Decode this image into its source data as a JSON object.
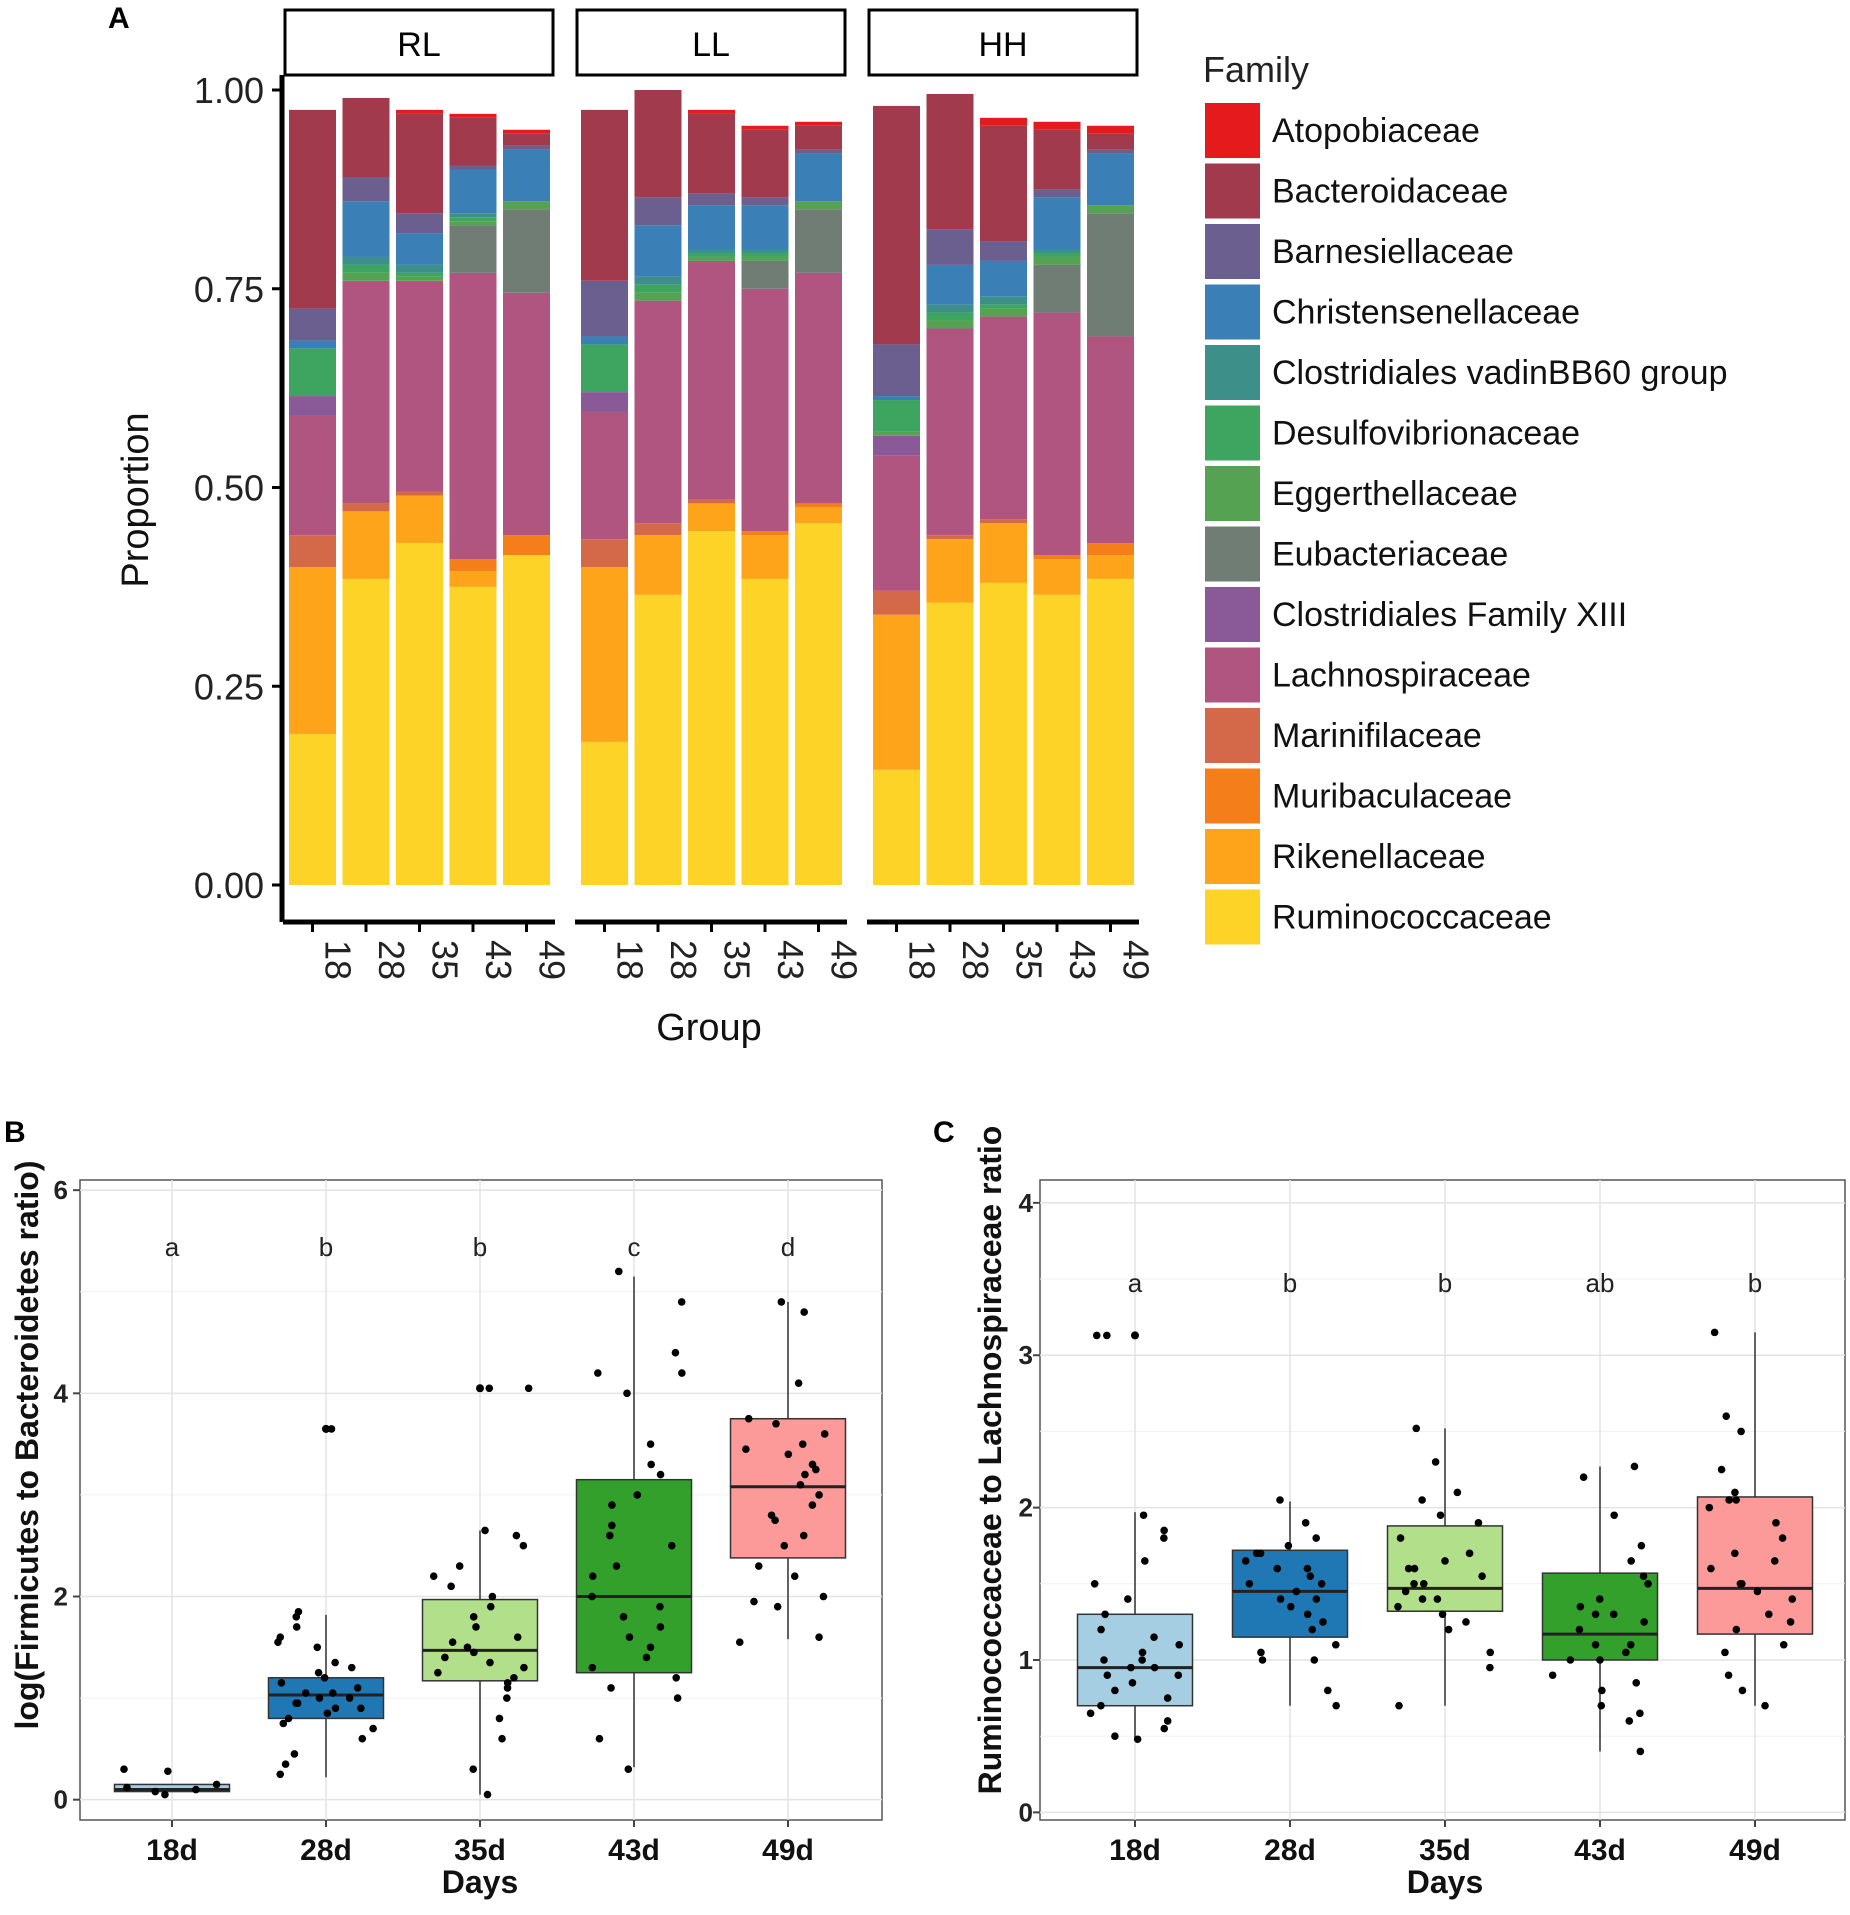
{
  "panel_labels": {
    "a": "A",
    "b": "B",
    "c": "C"
  },
  "chart_data": [
    {
      "type": "bar",
      "stacked": true,
      "title": "",
      "xlabel": "Group",
      "ylabel": "Proportion",
      "ylim": [
        0,
        1
      ],
      "yticks": [
        "0.00",
        "0.25",
        "0.50",
        "0.75",
        "1.00"
      ],
      "facets": [
        "RL",
        "LL",
        "HH"
      ],
      "categories": [
        "18",
        "28",
        "35",
        "43",
        "49"
      ],
      "legend_title": "Family",
      "legend_position": "right",
      "families": [
        "Atopobiaceae",
        "Bacteroidaceae",
        "Barnesiellaceae",
        "Christensenellaceae",
        "Clostridiales vadinBB60 group",
        "Desulfovibrionaceae",
        "Eggerthellaceae",
        "Eubacteriaceae",
        "Clostridiales Family XIII",
        "Lachnospiraceae",
        "Marinifilaceae",
        "Muribaculaceae",
        "Rikenellaceae",
        "Ruminococcaceae"
      ],
      "colors": [
        "#E41A1C",
        "#A13A4C",
        "#6A5F8E",
        "#3A7FB5",
        "#3D9089",
        "#3DA55F",
        "#55A352",
        "#6F7D74",
        "#8A5A98",
        "#B05480",
        "#D4694A",
        "#F47E1A",
        "#FDA41B",
        "#FDD327"
      ],
      "values": {
        "RL": {
          "18": [
            0,
            0.25,
            0.04,
            0.01,
            0,
            0.06,
            0,
            0,
            0.025,
            0.15,
            0.04,
            0,
            0.21,
            0.19
          ],
          "28": [
            0,
            0.1,
            0.03,
            0.07,
            0.01,
            0.01,
            0.01,
            0,
            0,
            0.28,
            0.01,
            0,
            0.085,
            0.385
          ],
          "35": [
            0.005,
            0.125,
            0.025,
            0.04,
            0.01,
            0.005,
            0.005,
            0,
            0,
            0.265,
            0.005,
            0,
            0.06,
            0.43
          ],
          "43": [
            0.005,
            0.06,
            0.005,
            0.055,
            0.005,
            0.005,
            0.005,
            0.06,
            0,
            0.36,
            0,
            0.015,
            0.02,
            0.375
          ],
          "49": [
            0.005,
            0.015,
            0.005,
            0.065,
            0,
            0,
            0.01,
            0.105,
            0,
            0.305,
            0,
            0.025,
            0,
            0.415
          ]
        },
        "LL": {
          "18": [
            0,
            0.215,
            0.07,
            0.01,
            0,
            0.06,
            0,
            0,
            0.025,
            0.16,
            0.035,
            0,
            0.22,
            0.18
          ],
          "28": [
            0,
            0.135,
            0.035,
            0.065,
            0.01,
            0.01,
            0.01,
            0,
            0,
            0.28,
            0.015,
            0,
            0.075,
            0.365
          ],
          "35": [
            0.005,
            0.1,
            0.015,
            0.055,
            0.005,
            0.005,
            0.005,
            0,
            0,
            0.3,
            0.005,
            0,
            0.035,
            0.445
          ],
          "43": [
            0.005,
            0.085,
            0.01,
            0.055,
            0.005,
            0.005,
            0.005,
            0.035,
            0,
            0.305,
            0,
            0.005,
            0.055,
            0.385
          ],
          "49": [
            0.005,
            0.03,
            0.005,
            0.06,
            0,
            0,
            0.01,
            0.08,
            0,
            0.29,
            0,
            0.005,
            0.02,
            0.455
          ]
        },
        "HH": {
          "18": [
            0,
            0.3,
            0.065,
            0.005,
            0,
            0.04,
            0.005,
            0,
            0.025,
            0.17,
            0.03,
            0,
            0.195,
            0.145
          ],
          "28": [
            0,
            0.17,
            0.045,
            0.05,
            0.01,
            0.01,
            0.01,
            0,
            0,
            0.26,
            0.005,
            0,
            0.08,
            0.355
          ],
          "35": [
            0.01,
            0.145,
            0.025,
            0.045,
            0.01,
            0.005,
            0.01,
            0,
            0,
            0.255,
            0.005,
            0,
            0.075,
            0.38
          ],
          "43": [
            0.01,
            0.075,
            0.01,
            0.065,
            0.005,
            0.005,
            0.01,
            0.06,
            0,
            0.305,
            0,
            0.005,
            0.045,
            0.365
          ],
          "49": [
            0.01,
            0.02,
            0.005,
            0.065,
            0,
            0,
            0.01,
            0.155,
            0,
            0.26,
            0,
            0.015,
            0.03,
            0.385
          ]
        }
      }
    },
    {
      "type": "box",
      "title": "",
      "xlabel": "Days",
      "ylabel": "log(Firmicutes to Bacteroidetes ratio)",
      "ylim": [
        -0.2,
        6.1
      ],
      "yticks": [
        "0",
        "2",
        "4",
        "6"
      ],
      "categories": [
        "18d",
        "28d",
        "35d",
        "43d",
        "49d"
      ],
      "colors": [
        "#A6CEE3",
        "#1F78B4",
        "#B2DF8A",
        "#33A02C",
        "#FB9A99"
      ],
      "significance": [
        "a",
        "b",
        "b",
        "c",
        "d"
      ],
      "boxes": [
        {
          "q1": 0.08,
          "median": 0.1,
          "q3": 0.15,
          "whisker_low": 0.08,
          "whisker_high": 0.15,
          "outliers": []
        },
        {
          "q1": 0.8,
          "median": 1.03,
          "q3": 1.2,
          "whisker_low": 0.22,
          "whisker_high": 1.82,
          "outliers": [
            3.65
          ]
        },
        {
          "q1": 1.17,
          "median": 1.47,
          "q3": 1.97,
          "whisker_low": 0.05,
          "whisker_high": 2.65,
          "outliers": [
            4.05
          ]
        },
        {
          "q1": 1.25,
          "median": 2.0,
          "q3": 3.15,
          "whisker_low": 0.32,
          "whisker_high": 5.15,
          "outliers": []
        },
        {
          "q1": 2.38,
          "median": 3.08,
          "q3": 3.75,
          "whisker_low": 1.58,
          "whisker_high": 4.9,
          "outliers": []
        }
      ],
      "points": [
        [
          0.3,
          0.05,
          0.28,
          0.12,
          0.1,
          0.08,
          0.15
        ],
        [
          0.35,
          0.25,
          0.45,
          0.6,
          0.7,
          0.8,
          0.85,
          0.9,
          0.95,
          1.0,
          1.05,
          1.1,
          1.15,
          1.2,
          1.25,
          1.3,
          1.35,
          1.5,
          1.55,
          1.6,
          1.7,
          1.8,
          1.85,
          0.95,
          1.0,
          1.05,
          0.9,
          0.75,
          3.65,
          3.65
        ],
        [
          0.05,
          0.3,
          0.6,
          0.8,
          1.0,
          1.1,
          1.2,
          1.3,
          1.4,
          1.45,
          1.5,
          1.55,
          1.6,
          1.7,
          1.8,
          1.9,
          2.0,
          2.1,
          2.2,
          2.3,
          2.5,
          2.65,
          2.6,
          1.25,
          1.35,
          1.15,
          4.05,
          4.05
        ],
        [
          0.3,
          0.6,
          1.0,
          1.1,
          1.2,
          1.3,
          1.5,
          1.7,
          1.8,
          2.0,
          2.2,
          2.3,
          2.5,
          2.7,
          2.9,
          3.0,
          3.2,
          3.5,
          4.0,
          4.2,
          4.4,
          4.9,
          5.2,
          1.6,
          1.4,
          2.6,
          3.3,
          1.9,
          4.2
        ],
        [
          1.55,
          1.6,
          1.9,
          2.0,
          2.3,
          2.5,
          2.6,
          2.8,
          2.9,
          3.0,
          3.1,
          3.2,
          3.3,
          3.4,
          3.5,
          3.6,
          3.7,
          3.75,
          4.1,
          4.8,
          4.9,
          2.75,
          3.25,
          3.45,
          2.2,
          1.95
        ]
      ]
    },
    {
      "type": "box",
      "title": "",
      "xlabel": "Days",
      "ylabel": "Ruminococcaceae to Lachnospiraceae ratio",
      "ylim": [
        -0.05,
        4.15
      ],
      "yticks": [
        "0",
        "1",
        "2",
        "3",
        "4"
      ],
      "categories": [
        "18d",
        "28d",
        "35d",
        "43d",
        "49d"
      ],
      "colors": [
        "#A6CEE3",
        "#1F78B4",
        "#B2DF8A",
        "#33A02C",
        "#FB9A99"
      ],
      "significance": [
        "a",
        "b",
        "b",
        "ab",
        "b"
      ],
      "boxes": [
        {
          "q1": 0.7,
          "median": 0.95,
          "q3": 1.3,
          "whisker_low": 0.48,
          "whisker_high": 1.97,
          "outliers": [
            3.13
          ]
        },
        {
          "q1": 1.15,
          "median": 1.45,
          "q3": 1.72,
          "whisker_low": 0.7,
          "whisker_high": 2.04,
          "outliers": []
        },
        {
          "q1": 1.32,
          "median": 1.47,
          "q3": 1.88,
          "whisker_low": 0.7,
          "whisker_high": 2.52,
          "outliers": []
        },
        {
          "q1": 1.0,
          "median": 1.17,
          "q3": 1.57,
          "whisker_low": 0.4,
          "whisker_high": 2.27,
          "outliers": []
        },
        {
          "q1": 1.17,
          "median": 1.47,
          "q3": 2.07,
          "whisker_low": 0.7,
          "whisker_high": 3.15,
          "outliers": []
        }
      ],
      "points": [
        [
          0.48,
          0.5,
          0.55,
          0.6,
          0.65,
          0.7,
          0.75,
          0.8,
          0.85,
          0.9,
          0.95,
          1.0,
          1.05,
          1.1,
          1.15,
          1.2,
          1.3,
          1.4,
          1.5,
          1.65,
          1.8,
          1.85,
          1.95,
          0.9,
          0.95,
          1.0,
          3.13,
          3.13
        ],
        [
          0.7,
          0.8,
          1.0,
          1.05,
          1.1,
          1.2,
          1.3,
          1.4,
          1.45,
          1.5,
          1.55,
          1.6,
          1.65,
          1.7,
          1.75,
          1.8,
          1.9,
          2.05,
          1.4,
          1.35,
          1.25,
          1.6,
          1.7,
          1.0,
          1.5
        ],
        [
          0.7,
          0.95,
          1.05,
          1.2,
          1.3,
          1.4,
          1.45,
          1.5,
          1.55,
          1.6,
          1.65,
          1.7,
          1.8,
          1.9,
          1.95,
          2.05,
          2.1,
          2.3,
          2.52,
          1.4,
          1.35,
          1.5,
          1.6,
          1.25
        ],
        [
          0.4,
          0.6,
          0.65,
          0.7,
          0.8,
          0.9,
          1.0,
          1.05,
          1.1,
          1.2,
          1.25,
          1.3,
          1.35,
          1.4,
          1.5,
          1.55,
          1.65,
          1.75,
          1.95,
          2.2,
          2.27,
          1.1,
          1.3,
          1.0,
          0.85
        ],
        [
          0.7,
          0.8,
          0.9,
          1.05,
          1.1,
          1.2,
          1.3,
          1.4,
          1.45,
          1.5,
          1.6,
          1.7,
          1.8,
          1.9,
          2.0,
          2.05,
          2.1,
          2.25,
          2.5,
          2.6,
          3.15,
          1.5,
          1.25,
          2.05,
          1.65
        ]
      ]
    }
  ]
}
